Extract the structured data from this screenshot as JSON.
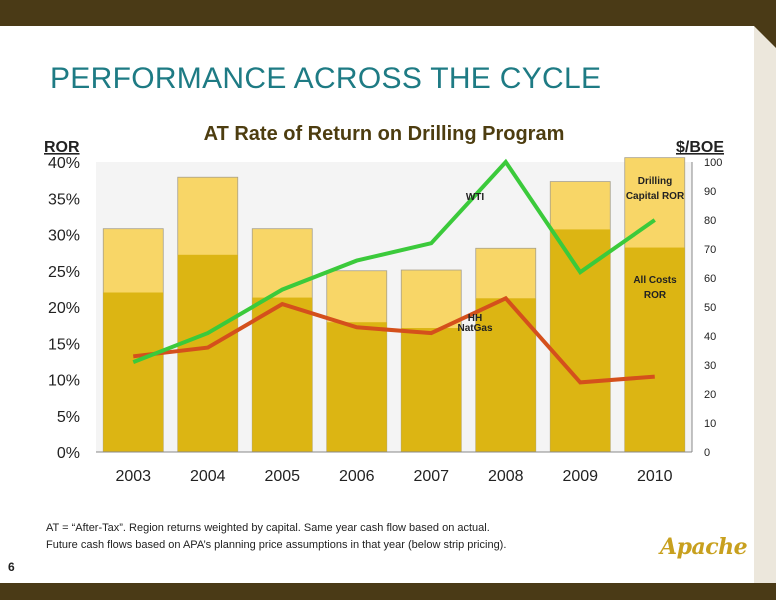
{
  "page_title": "PERFORMANCE ACROSS THE CYCLE",
  "page_number": "6",
  "footnote": {
    "line1": "AT = “After-Tax”. Region returns weighted by capital. Same year cash flow based on actual.",
    "line2": "Future cash flows based on APA’s planning price assumptions in that year (below strip pricing)."
  },
  "logo_text": "Apache",
  "colors": {
    "band": "#4a3a16",
    "title": "#1e7b84",
    "bar_dark": "#dcb513",
    "bar_light": "#f8d667",
    "line_wti": "#3bca3b",
    "line_hh": "#d4501c",
    "logo": "#c8a01e"
  },
  "chart_data": {
    "type": "bar",
    "title": "AT Rate of Return on Drilling Program",
    "ylabel": "ROR",
    "y2label": "$/BOE",
    "categories": [
      "2003",
      "2004",
      "2005",
      "2006",
      "2007",
      "2008",
      "2009",
      "2010"
    ],
    "ylim": [
      0,
      40
    ],
    "yticks": [
      "0%",
      "5%",
      "10%",
      "15%",
      "20%",
      "25%",
      "30%",
      "35%",
      "40%"
    ],
    "y2lim": [
      0,
      100
    ],
    "y2ticks": [
      "0",
      "10",
      "20",
      "30",
      "40",
      "50",
      "60",
      "70",
      "80",
      "90",
      "100"
    ],
    "series": [
      {
        "name": "All Costs ROR",
        "kind": "bar",
        "axis": "left",
        "values": [
          22.0,
          27.2,
          21.3,
          17.9,
          17.1,
          21.2,
          30.7,
          28.2
        ]
      },
      {
        "name": "Drilling Capital ROR",
        "kind": "bar",
        "axis": "left",
        "values": [
          30.8,
          37.9,
          30.8,
          25.0,
          25.1,
          28.1,
          37.3,
          40.6
        ]
      },
      {
        "name": "WTI",
        "kind": "line",
        "axis": "right",
        "values": [
          31,
          41,
          56,
          66,
          72,
          100,
          62,
          80
        ]
      },
      {
        "name": "HH NatGas",
        "kind": "line",
        "axis": "right",
        "values": [
          33,
          36,
          51,
          43,
          41,
          53,
          24,
          26
        ]
      }
    ],
    "labels": {
      "wti": "WTI",
      "hh_line1": "HH",
      "hh_line2": "NatGas",
      "drilling_line1": "Drilling",
      "drilling_line2": "Capital ROR",
      "allcosts_line1": "All Costs",
      "allcosts_line2": "ROR"
    },
    "grid": false
  }
}
